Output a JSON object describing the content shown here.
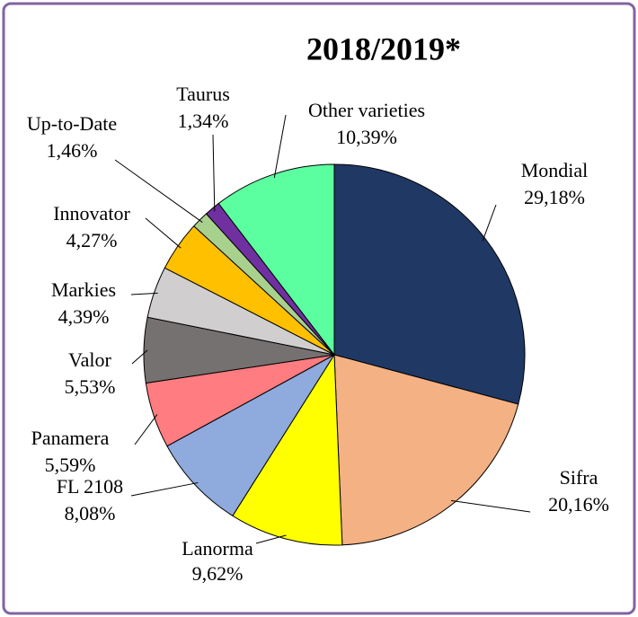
{
  "chart_data": {
    "type": "pie",
    "title": "2018/2019*",
    "categories": [
      "Mondial",
      "Sifra",
      "Lanorma",
      "FL 2108",
      "Panamera",
      "Valor",
      "Markies",
      "Innovator",
      "Up-to-Date",
      "Taurus",
      "Other varieties"
    ],
    "values": [
      29.18,
      20.16,
      9.62,
      8.08,
      5.59,
      5.53,
      4.39,
      4.27,
      1.46,
      1.34,
      10.39
    ],
    "value_labels": [
      "29,18%",
      "20,16%",
      "9,62%",
      "8,08%",
      "5,59%",
      "5,53%",
      "4,39%",
      "4,27%",
      "1,46%",
      "1,34%",
      "10,39%"
    ],
    "colors": [
      "#203864",
      "#f4b183",
      "#ffff00",
      "#8faadc",
      "#ff7c80",
      "#767171",
      "#d0cece",
      "#ffc000",
      "#a9d18e",
      "#7030a0",
      "#5cffa0"
    ]
  }
}
